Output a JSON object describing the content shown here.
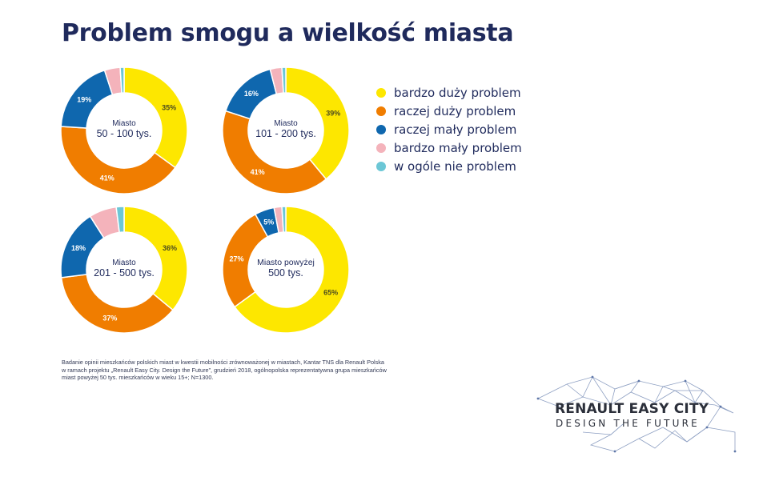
{
  "title": "Problem smogu a wielkość miasta",
  "legend": [
    {
      "label": "bardzo duży problem",
      "color": "#fde700"
    },
    {
      "label": "raczej duży problem",
      "color": "#f07d00"
    },
    {
      "label": "raczej mały problem",
      "color": "#0f67ae"
    },
    {
      "label": "bardzo mały problem",
      "color": "#f4b3bb"
    },
    {
      "label": "w ogóle nie problem",
      "color": "#6cc7d6"
    }
  ],
  "chart_data": [
    {
      "type": "pie",
      "title_lines": [
        "Miasto",
        "50 - 100 tys."
      ],
      "categories": [
        "bardzo duży problem",
        "raczej duży problem",
        "raczej mały problem",
        "bardzo mały problem",
        "w ogóle nie problem"
      ],
      "values": [
        35,
        41,
        19,
        4,
        1
      ],
      "labels": [
        "35%",
        "41%",
        "19%",
        "",
        ""
      ]
    },
    {
      "type": "pie",
      "title_lines": [
        "Miasto",
        "101 - 200 tys."
      ],
      "categories": [
        "bardzo duży problem",
        "raczej duży problem",
        "raczej mały problem",
        "bardzo mały problem",
        "w ogóle nie problem"
      ],
      "values": [
        39,
        41,
        16,
        3,
        1
      ],
      "labels": [
        "39%",
        "41%",
        "16%",
        "",
        ""
      ]
    },
    {
      "type": "pie",
      "title_lines": [
        "Miasto",
        "201 - 500 tys."
      ],
      "categories": [
        "bardzo duży problem",
        "raczej duży problem",
        "raczej mały problem",
        "bardzo mały problem",
        "w ogóle nie problem"
      ],
      "values": [
        36,
        37,
        18,
        7,
        2
      ],
      "labels": [
        "36%",
        "37%",
        "18%",
        "",
        ""
      ]
    },
    {
      "type": "pie",
      "title_lines": [
        "Miasto powyżej",
        "500 tys."
      ],
      "categories": [
        "bardzo duży problem",
        "raczej duży problem",
        "raczej mały problem",
        "bardzo mały problem",
        "w ogóle nie problem"
      ],
      "values": [
        65,
        27,
        5,
        2,
        1
      ],
      "labels": [
        "65%",
        "27%",
        "5%",
        "",
        ""
      ]
    }
  ],
  "footnote": [
    "Badanie opinii mieszkańców polskich miast w kwestii mobilności zrównoważonej w miastach, Kantar TNS dla Renault Polska",
    "w ramach projektu „Renault Easy City. Design the Future”, grudzień 2018, ogólnopolska reprezentatywna grupa mieszkańców",
    "miast powyżej 50 tys. mieszkańców w wieku 15+; N=1300."
  ],
  "logo": {
    "line1": "RENAULT EASY CITY",
    "line2": "DESIGN THE FUTURE"
  }
}
